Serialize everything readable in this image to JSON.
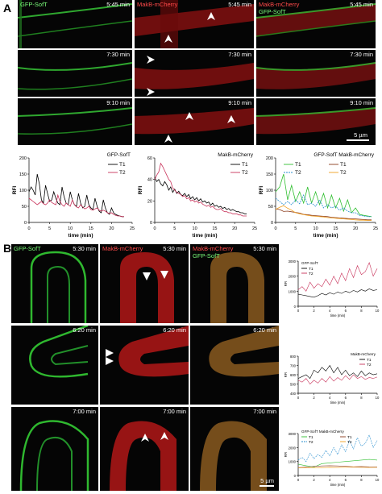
{
  "panel_a": {
    "letter": "A",
    "columns": [
      "GFP-SofT",
      "MakB-mCherry",
      "MakB-mCherry",
      "GFP-SofT"
    ],
    "times": [
      "5:45 min",
      "7:30 min",
      "9:10 min"
    ],
    "scale_bar": "5 µm"
  },
  "panel_b": {
    "letter": "B",
    "columns": [
      "GFP-SofT",
      "MakB-mCherry",
      "MakB-mCherry",
      "GFP-SofT"
    ],
    "times": [
      "5:30 min",
      "6:20 min",
      "7:00 min"
    ],
    "scale_bar": "5 µm"
  },
  "colors": {
    "green": "#2fbf2f",
    "red": "#e8203a",
    "black": "#000000",
    "pink": "#c8325a",
    "blue_dashed": "#2a8fd0",
    "orange": "#f0a020",
    "brown": "#8b3a1a"
  },
  "chart_data": [
    {
      "type": "line",
      "id": "a1",
      "title": "GFP-SofT",
      "xlabel": "time (min)",
      "ylabel": "RFI",
      "xlim": [
        0,
        25
      ],
      "ylim": [
        0,
        200
      ],
      "xticks": [
        0,
        5,
        10,
        15,
        20,
        25
      ],
      "yticks": [
        0,
        50,
        100,
        150,
        200
      ],
      "series": [
        {
          "name": "T1",
          "color": "#000000",
          "x": [
            0,
            0.5,
            1,
            1.5,
            2,
            2.5,
            3,
            3.5,
            4,
            4.5,
            5,
            5.5,
            6,
            6.5,
            7,
            7.5,
            8,
            8.5,
            9,
            9.5,
            10,
            10.5,
            11,
            11.5,
            12,
            12.5,
            13,
            13.5,
            14,
            14.5,
            15,
            15.5,
            16,
            16.5,
            17,
            17.5,
            18,
            18.5,
            19,
            19.5,
            20,
            20.5,
            21,
            21.5,
            22,
            22.5,
            23
          ],
          "y": [
            95,
            110,
            100,
            85,
            150,
            120,
            70,
            60,
            115,
            90,
            65,
            70,
            95,
            75,
            60,
            55,
            110,
            80,
            60,
            55,
            95,
            70,
            55,
            50,
            90,
            60,
            45,
            50,
            85,
            55,
            45,
            40,
            75,
            50,
            35,
            30,
            70,
            45,
            30,
            25,
            45,
            30,
            25,
            22,
            20,
            18,
            18
          ]
        },
        {
          "name": "T2",
          "color": "#c8325a",
          "x": [
            0,
            0.5,
            1,
            1.5,
            2,
            2.5,
            3,
            3.5,
            4,
            4.5,
            5,
            5.5,
            6,
            6.5,
            7,
            7.5,
            8,
            8.5,
            9,
            9.5,
            10,
            10.5,
            11,
            11.5,
            12,
            12.5,
            13,
            13.5,
            14,
            14.5,
            15,
            15.5,
            16,
            16.5,
            17,
            17.5,
            18,
            18.5,
            19,
            19.5,
            20,
            20.5,
            21,
            21.5,
            22,
            22.5,
            23
          ],
          "y": [
            75,
            70,
            65,
            60,
            55,
            60,
            65,
            58,
            55,
            60,
            70,
            62,
            58,
            55,
            85,
            65,
            55,
            50,
            60,
            55,
            50,
            70,
            55,
            48,
            45,
            55,
            48,
            42,
            45,
            50,
            40,
            38,
            42,
            45,
            38,
            35,
            38,
            35,
            30,
            28,
            30,
            25,
            22,
            20,
            20,
            18,
            18
          ]
        }
      ]
    },
    {
      "type": "line",
      "id": "a2",
      "title": "MakB-mCherry",
      "xlabel": "time (min)",
      "ylabel": "RFI",
      "xlim": [
        0,
        25
      ],
      "ylim": [
        0,
        60
      ],
      "xticks": [
        0,
        5,
        10,
        15,
        20,
        25
      ],
      "yticks": [
        0,
        20,
        40,
        60
      ],
      "series": [
        {
          "name": "T1",
          "color": "#000000",
          "x": [
            0,
            0.5,
            1,
            1.5,
            2,
            2.5,
            3,
            3.5,
            4,
            4.5,
            5,
            5.5,
            6,
            6.5,
            7,
            7.5,
            8,
            8.5,
            9,
            9.5,
            10,
            10.5,
            11,
            11.5,
            12,
            12.5,
            13,
            13.5,
            14,
            14.5,
            15,
            15.5,
            16,
            16.5,
            17,
            17.5,
            18,
            18.5,
            19,
            19.5,
            20,
            20.5,
            21,
            21.5,
            22,
            22.5,
            23
          ],
          "y": [
            42,
            38,
            40,
            36,
            34,
            38,
            35,
            30,
            33,
            28,
            31,
            27,
            29,
            26,
            25,
            27,
            24,
            26,
            22,
            24,
            21,
            23,
            20,
            22,
            19,
            20,
            18,
            19,
            16,
            18,
            15,
            16,
            14,
            15,
            13,
            14,
            12,
            13,
            11,
            12,
            11,
            10,
            10,
            9,
            9,
            8,
            8
          ]
        },
        {
          "name": "T2",
          "color": "#c8325a",
          "x": [
            0,
            0.5,
            1,
            1.5,
            2,
            2.5,
            3,
            3.5,
            4,
            4.5,
            5,
            5.5,
            6,
            6.5,
            7,
            7.5,
            8,
            8.5,
            9,
            9.5,
            10,
            10.5,
            11,
            11.5,
            12,
            12.5,
            13,
            13.5,
            14,
            14.5,
            15,
            15.5,
            16,
            16.5,
            17,
            17.5,
            18,
            18.5,
            19,
            19.5,
            20,
            20.5,
            21,
            21.5,
            22,
            22.5,
            23
          ],
          "y": [
            40,
            44,
            47,
            55,
            52,
            48,
            44,
            40,
            38,
            32,
            30,
            28,
            27,
            26,
            24,
            25,
            22,
            23,
            20,
            21,
            19,
            20,
            18,
            19,
            17,
            16,
            15,
            16,
            14,
            15,
            13,
            12,
            12,
            13,
            11,
            10,
            10,
            9,
            9,
            8,
            8,
            8,
            7,
            7,
            6,
            6,
            6
          ]
        }
      ]
    },
    {
      "type": "line",
      "id": "a3",
      "title": "GFP-SofT   MakB-mCherry",
      "xlabel": "time (min)",
      "ylabel": "RFI",
      "xlim": [
        0,
        25
      ],
      "ylim": [
        0,
        200
      ],
      "xticks": [
        0,
        5,
        10,
        15,
        20,
        25
      ],
      "yticks": [
        0,
        50,
        100,
        150,
        200
      ],
      "series": [
        {
          "name": "T1",
          "color": "#2fbf2f",
          "x": [
            0,
            1,
            2,
            3,
            4,
            5,
            6,
            7,
            8,
            9,
            10,
            11,
            12,
            13,
            14,
            15,
            16,
            17,
            18,
            19,
            20,
            21,
            22,
            23,
            24
          ],
          "y": [
            95,
            110,
            150,
            70,
            115,
            65,
            95,
            60,
            110,
            60,
            95,
            55,
            90,
            45,
            85,
            45,
            75,
            35,
            70,
            30,
            45,
            25,
            22,
            20,
            18
          ]
        },
        {
          "name": "T2",
          "color": "#2a8fd0",
          "x": [
            0,
            1,
            2,
            3,
            4,
            5,
            6,
            7,
            8,
            9,
            10,
            11,
            12,
            13,
            14,
            15,
            16,
            17,
            18,
            19,
            20,
            21,
            22,
            23,
            24
          ],
          "y": [
            75,
            65,
            55,
            65,
            55,
            70,
            58,
            85,
            55,
            60,
            50,
            70,
            45,
            55,
            45,
            50,
            38,
            45,
            35,
            30,
            30,
            22,
            20,
            18,
            18
          ]
        },
        {
          "name": "T1",
          "color": "#8b3a1a",
          "x": [
            0,
            1,
            2,
            3,
            4,
            5,
            6,
            7,
            8,
            9,
            10,
            11,
            12,
            13,
            14,
            15,
            16,
            17,
            18,
            19,
            20,
            21,
            22,
            23,
            24
          ],
          "y": [
            42,
            40,
            34,
            35,
            33,
            31,
            29,
            25,
            24,
            22,
            21,
            20,
            19,
            18,
            16,
            15,
            14,
            13,
            12,
            11,
            11,
            10,
            9,
            8,
            8
          ]
        },
        {
          "name": "T2",
          "color": "#f0a020",
          "x": [
            0,
            1,
            2,
            3,
            4,
            5,
            6,
            7,
            8,
            9,
            10,
            11,
            12,
            13,
            14,
            15,
            16,
            17,
            18,
            19,
            20,
            21,
            22,
            23,
            24
          ],
          "y": [
            40,
            47,
            52,
            44,
            38,
            30,
            27,
            24,
            22,
            20,
            19,
            18,
            17,
            15,
            14,
            13,
            12,
            11,
            10,
            9,
            8,
            7,
            7,
            6,
            6
          ]
        }
      ]
    },
    {
      "type": "line",
      "id": "b1",
      "title": "GFP-SofT",
      "xlabel": "time (min)",
      "ylabel": "RFI",
      "xlim": [
        0,
        10
      ],
      "ylim": [
        0,
        3000
      ],
      "xticks": [
        0,
        2,
        4,
        6,
        8,
        10
      ],
      "yticks": [
        0,
        1000,
        2000,
        3000
      ],
      "series": [
        {
          "name": "T1",
          "color": "#000000",
          "x": [
            0,
            0.5,
            1,
            1.5,
            2,
            2.5,
            3,
            3.5,
            4,
            4.5,
            5,
            5.5,
            6,
            6.5,
            7,
            7.5,
            8,
            8.5,
            9,
            9.5,
            10
          ],
          "y": [
            800,
            750,
            700,
            650,
            600,
            700,
            850,
            750,
            900,
            800,
            950,
            850,
            1000,
            900,
            1050,
            950,
            1100,
            1000,
            1150,
            1050,
            1100
          ]
        },
        {
          "name": "T2",
          "color": "#c8325a",
          "x": [
            0,
            0.5,
            1,
            1.5,
            2,
            2.5,
            3,
            3.5,
            4,
            4.5,
            5,
            5.5,
            6,
            6.5,
            7,
            7.5,
            8,
            8.5,
            9,
            9.5,
            10
          ],
          "y": [
            1100,
            1300,
            1000,
            1600,
            1200,
            1500,
            1300,
            1800,
            1400,
            2000,
            1500,
            2200,
            1700,
            2500,
            1900,
            2700,
            2100,
            2300,
            2900,
            2000,
            2500
          ]
        }
      ]
    },
    {
      "type": "line",
      "id": "b2",
      "title": "MakB-mCherry",
      "xlabel": "time (min)",
      "ylabel": "RFI",
      "xlim": [
        0,
        10
      ],
      "ylim": [
        400,
        800
      ],
      "xticks": [
        0,
        2,
        4,
        6,
        8,
        10
      ],
      "yticks": [
        400,
        500,
        600,
        700,
        800
      ],
      "series": [
        {
          "name": "T1",
          "color": "#000000",
          "x": [
            0,
            0.5,
            1,
            1.5,
            2,
            2.5,
            3,
            3.5,
            4,
            4.5,
            5,
            5.5,
            6,
            6.5,
            7,
            7.5,
            8,
            8.5,
            9,
            9.5,
            10
          ],
          "y": [
            560,
            580,
            600,
            560,
            650,
            620,
            680,
            640,
            700,
            620,
            680,
            600,
            650,
            590,
            620,
            580,
            640,
            590,
            620,
            600,
            610
          ]
        },
        {
          "name": "T2",
          "color": "#c8325a",
          "x": [
            0,
            0.5,
            1,
            1.5,
            2,
            2.5,
            3,
            3.5,
            4,
            4.5,
            5,
            5.5,
            6,
            6.5,
            7,
            7.5,
            8,
            8.5,
            9,
            9.5,
            10
          ],
          "y": [
            540,
            520,
            560,
            500,
            540,
            510,
            560,
            520,
            580,
            530,
            570,
            540,
            590,
            550,
            600,
            560,
            580,
            550,
            570,
            560,
            575
          ]
        }
      ]
    },
    {
      "type": "line",
      "id": "b3",
      "title": "GFP-SofT   MakB-mCherry",
      "xlabel": "time (min)",
      "ylabel": "RFI",
      "xlim": [
        0,
        10
      ],
      "ylim": [
        0,
        3000
      ],
      "xticks": [
        0,
        2,
        4,
        6,
        8,
        10
      ],
      "yticks": [
        0,
        1000,
        2000,
        3000
      ],
      "series": [
        {
          "name": "T1",
          "color": "#2fbf2f",
          "x": [
            0,
            1,
            2,
            3,
            4,
            5,
            6,
            7,
            8,
            9,
            10
          ],
          "y": [
            800,
            700,
            600,
            850,
            900,
            950,
            1000,
            1050,
            1100,
            1150,
            1100
          ]
        },
        {
          "name": "T2",
          "color": "#2a8fd0",
          "x": [
            0,
            0.5,
            1,
            1.5,
            2,
            2.5,
            3,
            3.5,
            4,
            4.5,
            5,
            5.5,
            6,
            6.5,
            7,
            7.5,
            8,
            8.5,
            9,
            9.5,
            10
          ],
          "y": [
            1100,
            1300,
            1000,
            1600,
            1200,
            1500,
            1300,
            1800,
            1400,
            2000,
            1500,
            2200,
            1700,
            2500,
            1900,
            2700,
            2100,
            2300,
            2900,
            2000,
            2500
          ]
        },
        {
          "name": "T1",
          "color": "#8b3a1a",
          "x": [
            0,
            1,
            2,
            3,
            4,
            5,
            6,
            7,
            8,
            9,
            10
          ],
          "y": [
            560,
            600,
            650,
            680,
            700,
            680,
            650,
            620,
            640,
            620,
            610
          ]
        },
        {
          "name": "T2",
          "color": "#f0a020",
          "x": [
            0,
            1,
            2,
            3,
            4,
            5,
            6,
            7,
            8,
            9,
            10
          ],
          "y": [
            540,
            560,
            540,
            560,
            580,
            570,
            590,
            600,
            580,
            570,
            575
          ]
        }
      ]
    }
  ]
}
